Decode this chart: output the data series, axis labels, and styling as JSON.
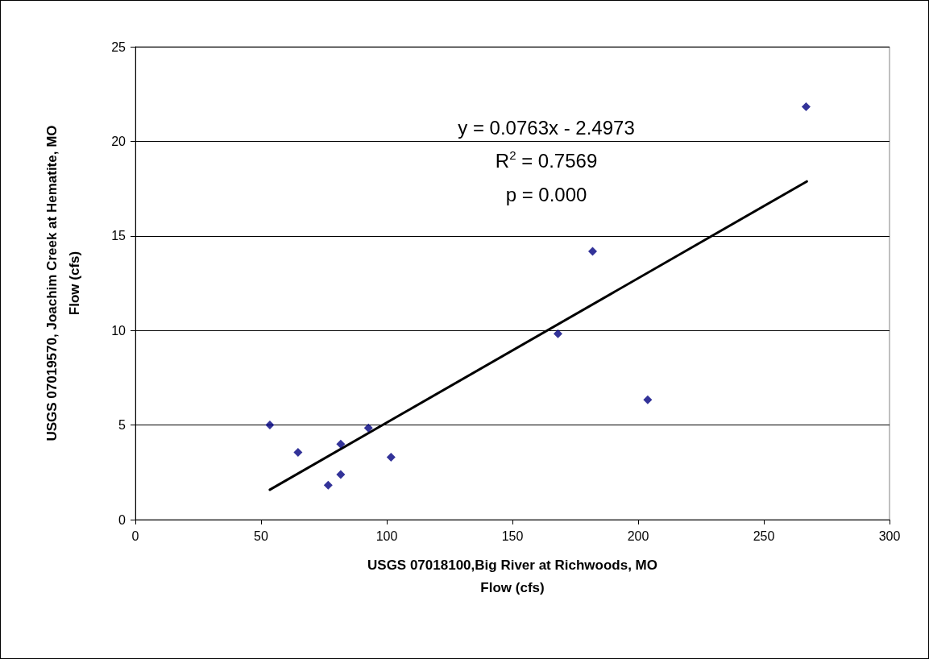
{
  "chart_data": {
    "type": "scatter",
    "xlabel": "USGS 07018100,Big River at Richwoods, MO\nFlow (cfs)",
    "ylabel": "USGS 07019570, Joachim Creek at Hematite, MO\nFlow (cfs)",
    "xlim": [
      0,
      300
    ],
    "xticks": [
      0,
      50,
      100,
      150,
      200,
      250,
      300
    ],
    "ylim": [
      0,
      25
    ],
    "yticks": [
      0,
      5,
      10,
      15,
      20,
      25
    ],
    "grid": "y",
    "series": [
      {
        "color": "#000080",
        "marker": "diamond",
        "x": [
          53.5,
          64.7,
          76.7,
          81.7,
          81.7,
          92.7,
          101.7,
          168.1,
          181.9,
          203.8,
          266.8
        ],
        "values": [
          5.0,
          3.56,
          1.82,
          3.99,
          2.39,
          4.84,
          3.3,
          9.83,
          14.18,
          6.33,
          21.83
        ]
      },
      {
        "type": "line",
        "marker": "none",
        "color": "#000000",
        "x": [
          53.5,
          267.1
        ],
        "values": [
          1.58,
          17.88
        ]
      }
    ],
    "annotations": [
      "y = 0.0763x - 2.4973",
      "R$^{2}$ = 0.7569",
      "p = 0.000"
    ]
  }
}
